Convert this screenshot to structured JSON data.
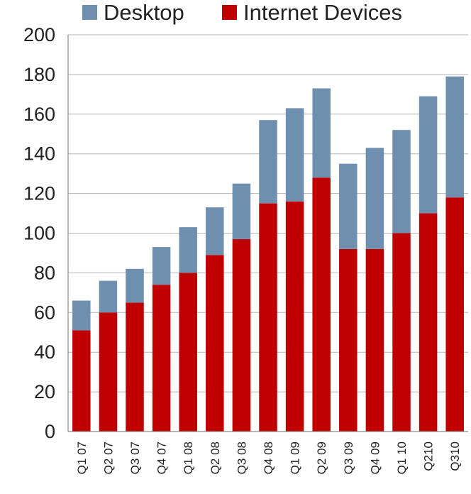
{
  "chart_data": {
    "type": "bar",
    "stacked": true,
    "title": "",
    "xlabel": "",
    "ylabel": "",
    "ylim": [
      0,
      200
    ],
    "yticks": [
      0,
      20,
      40,
      60,
      80,
      100,
      120,
      140,
      160,
      180,
      200
    ],
    "grid": true,
    "legend_position": "top",
    "categories": [
      "Q1 07",
      "Q2 07",
      "Q3 07",
      "Q4 07",
      "Q1 08",
      "Q2 08",
      "Q3 08",
      "Q4 08",
      "Q1 09",
      "Q2 09",
      "Q3 09",
      "Q4 09",
      "Q1 10",
      "Q210",
      "Q310"
    ],
    "series": [
      {
        "name": "Internet Devices",
        "color": "#c00000",
        "values": [
          51,
          60,
          65,
          74,
          80,
          89,
          97,
          115,
          116,
          128,
          92,
          92,
          100,
          110,
          118
        ]
      },
      {
        "name": "Desktop",
        "color": "#6e8fae",
        "values": [
          15,
          16,
          17,
          19,
          23,
          24,
          28,
          42,
          47,
          45,
          43,
          51,
          52,
          59,
          61
        ]
      }
    ]
  }
}
